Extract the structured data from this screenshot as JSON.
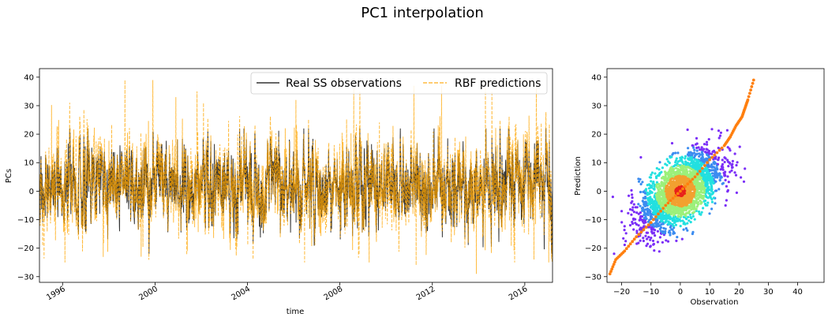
{
  "figure": {
    "title": "PC1 interpolation"
  },
  "chart_data": [
    {
      "type": "line",
      "xlabel": "time",
      "ylabel": "PCs",
      "xlim": [
        1995.0,
        2017.2
      ],
      "ylim": [
        -32,
        43
      ],
      "xticks": [
        "1996",
        "2000",
        "2004",
        "2008",
        "2012",
        "2016"
      ],
      "yticks": [
        -30,
        -20,
        -10,
        0,
        10,
        20,
        30,
        40
      ],
      "legend_position": "top-right",
      "series": [
        {
          "name": "Real SS observations",
          "color": "#000000",
          "linestyle": "solid",
          "x_range": [
            1995.0,
            2017.2
          ],
          "y_range_observed": [
            -22,
            22
          ],
          "typical_band": [
            -10,
            15
          ]
        },
        {
          "name": "RBF predictions",
          "color": "#FFA500",
          "linestyle": "dashed",
          "x_range": [
            1995.0,
            2017.2
          ],
          "y_range_observed": [
            -29,
            39
          ],
          "typical_band": [
            -12,
            18
          ],
          "peaks": [
            {
              "x": 1998.7,
              "y": 39
            },
            {
              "x": 1999.9,
              "y": 39
            },
            {
              "x": 2000.9,
              "y": 33
            },
            {
              "x": 2002.1,
              "y": 31
            },
            {
              "x": 2006.1,
              "y": 32
            },
            {
              "x": 2008.6,
              "y": 36
            },
            {
              "x": 2011.2,
              "y": 37
            },
            {
              "x": 2012.4,
              "y": 37
            },
            {
              "x": 2014.3,
              "y": 36
            },
            {
              "x": 2016.5,
              "y": 36
            }
          ],
          "troughs": [
            {
              "x": 1996.1,
              "y": -25
            },
            {
              "x": 1999.4,
              "y": -23
            },
            {
              "x": 2001.4,
              "y": -21
            },
            {
              "x": 2011.3,
              "y": -26
            },
            {
              "x": 2013.9,
              "y": -29
            },
            {
              "x": 2016.4,
              "y": -24
            }
          ]
        }
      ]
    },
    {
      "type": "scatter",
      "xlabel": "Observation",
      "ylabel": "Prediction",
      "xlim": [
        -25,
        49
      ],
      "ylim": [
        -32,
        43
      ],
      "xticks": [
        -20,
        -10,
        0,
        10,
        20,
        30,
        40
      ],
      "yticks": [
        -30,
        -20,
        -10,
        0,
        10,
        20,
        30,
        40
      ],
      "series": [
        {
          "kind": "density scatter",
          "colormap": [
            "#7B2FF7",
            "#3C8CF0",
            "#22E0E0",
            "#9CF07A",
            "#F2A030",
            "#E8201A"
          ],
          "center": [
            0,
            0
          ],
          "spread_observation": [
            -23,
            22
          ],
          "spread_prediction": [
            -24,
            39
          ],
          "correlation": 0.6
        },
        {
          "kind": "qq line",
          "color": "#FF7F0E",
          "points": [
            [
              -24,
              -29
            ],
            [
              -22,
              -24
            ],
            [
              -19,
              -21
            ],
            [
              -15,
              -16
            ],
            [
              -10,
              -11
            ],
            [
              -5,
              -5
            ],
            [
              0,
              0
            ],
            [
              5,
              5
            ],
            [
              10,
              11
            ],
            [
              15,
              16
            ],
            [
              17,
              19
            ],
            [
              19,
              23
            ],
            [
              21,
              26
            ],
            [
              22,
              29
            ],
            [
              23,
              32
            ],
            [
              25,
              39
            ]
          ]
        }
      ]
    }
  ]
}
